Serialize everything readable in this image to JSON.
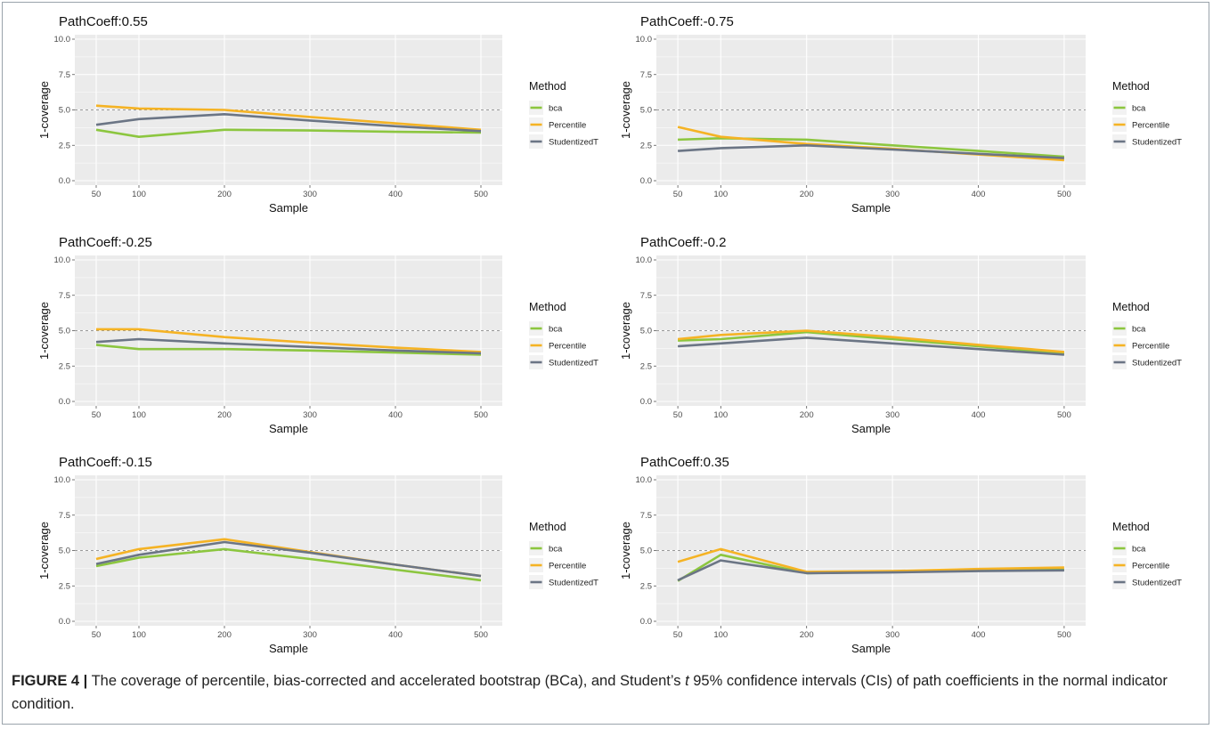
{
  "caption": {
    "label": "FIGURE 4 |",
    "text_before_t": " The coverage of percentile, bias-corrected and accelerated bootstrap (BCa), and Student’s ",
    "t": "t",
    "text_after_t": " 95% confidence intervals  (CIs) of path coefficients in the normal indicator condition."
  },
  "colors": {
    "bca": "#8cc63f",
    "Percentile": "#f5b324",
    "StudentizedT": "#6b7585",
    "panel_bg": "#ebebeb",
    "grid": "#ffffff",
    "reference_line": "#9a9a9a"
  },
  "chart_data": [
    {
      "type": "line",
      "title": "PathCoeff:0.55",
      "xlabel": "Sample",
      "ylabel": "1-coverage",
      "x": [
        50,
        100,
        200,
        300,
        400,
        500
      ],
      "xticks": [
        "50",
        "100",
        "200",
        "300",
        "400",
        "500"
      ],
      "yticks": [
        "0.0",
        "2.5",
        "5.0",
        "7.5",
        "10.0"
      ],
      "xlim": [
        25,
        525
      ],
      "ylim": [
        0,
        10
      ],
      "reference_line": 5,
      "legend_title": "Method",
      "legend_position": "right",
      "series": [
        {
          "name": "bca",
          "values": [
            3.6,
            3.1,
            3.6,
            3.55,
            3.45,
            3.4
          ]
        },
        {
          "name": "Percentile",
          "values": [
            5.3,
            5.1,
            5.0,
            4.5,
            4.05,
            3.6
          ]
        },
        {
          "name": "StudentizedT",
          "values": [
            3.95,
            4.35,
            4.7,
            4.25,
            3.85,
            3.5
          ]
        }
      ]
    },
    {
      "type": "line",
      "title": "PathCoeff:-0.75",
      "xlabel": "Sample",
      "ylabel": "1-coverage",
      "x": [
        50,
        100,
        200,
        300,
        400,
        500
      ],
      "xticks": [
        "50",
        "100",
        "200",
        "300",
        "400",
        "500"
      ],
      "yticks": [
        "0.0",
        "2.5",
        "5.0",
        "7.5",
        "10.0"
      ],
      "xlim": [
        25,
        525
      ],
      "ylim": [
        0,
        10
      ],
      "reference_line": 5,
      "legend_title": "Method",
      "legend_position": "right",
      "series": [
        {
          "name": "bca",
          "values": [
            2.9,
            3.0,
            2.9,
            2.5,
            2.1,
            1.7
          ]
        },
        {
          "name": "Percentile",
          "values": [
            3.8,
            3.1,
            2.6,
            2.25,
            1.85,
            1.45
          ]
        },
        {
          "name": "StudentizedT",
          "values": [
            2.1,
            2.3,
            2.5,
            2.2,
            1.9,
            1.6
          ]
        }
      ]
    },
    {
      "type": "line",
      "title": "PathCoeff:-0.25",
      "xlabel": "Sample",
      "ylabel": "1-coverage",
      "x": [
        50,
        100,
        200,
        300,
        400,
        500
      ],
      "xticks": [
        "50",
        "100",
        "200",
        "300",
        "400",
        "500"
      ],
      "yticks": [
        "0.0",
        "2.5",
        "5.0",
        "7.5",
        "10.0"
      ],
      "xlim": [
        25,
        525
      ],
      "ylim": [
        0,
        10
      ],
      "reference_line": 5,
      "legend_title": "Method",
      "legend_position": "right",
      "series": [
        {
          "name": "bca",
          "values": [
            4.0,
            3.7,
            3.7,
            3.6,
            3.45,
            3.3
          ]
        },
        {
          "name": "Percentile",
          "values": [
            5.1,
            5.1,
            4.55,
            4.15,
            3.8,
            3.5
          ]
        },
        {
          "name": "StudentizedT",
          "values": [
            4.2,
            4.4,
            4.1,
            3.85,
            3.6,
            3.4
          ]
        }
      ]
    },
    {
      "type": "line",
      "title": "PathCoeff:-0.2",
      "xlabel": "Sample",
      "ylabel": "1-coverage",
      "x": [
        50,
        100,
        200,
        300,
        400,
        500
      ],
      "xticks": [
        "50",
        "100",
        "200",
        "300",
        "400",
        "500"
      ],
      "yticks": [
        "0.0",
        "2.5",
        "5.0",
        "7.5",
        "10.0"
      ],
      "xlim": [
        25,
        525
      ],
      "ylim": [
        0,
        10
      ],
      "reference_line": 5,
      "legend_title": "Method",
      "legend_position": "right",
      "series": [
        {
          "name": "bca",
          "values": [
            4.3,
            4.4,
            4.9,
            4.4,
            3.9,
            3.4
          ]
        },
        {
          "name": "Percentile",
          "values": [
            4.4,
            4.7,
            5.0,
            4.55,
            4.0,
            3.5
          ]
        },
        {
          "name": "StudentizedT",
          "values": [
            3.9,
            4.1,
            4.5,
            4.1,
            3.7,
            3.3
          ]
        }
      ]
    },
    {
      "type": "line",
      "title": "PathCoeff:-0.15",
      "xlabel": "Sample",
      "ylabel": "1-coverage",
      "x": [
        50,
        100,
        200,
        300,
        400,
        500
      ],
      "xticks": [
        "50",
        "100",
        "200",
        "300",
        "400",
        "500"
      ],
      "yticks": [
        "0.0",
        "2.5",
        "5.0",
        "7.5",
        "10.0"
      ],
      "xlim": [
        25,
        525
      ],
      "ylim": [
        0,
        10
      ],
      "reference_line": 5,
      "legend_title": "Method",
      "legend_position": "right",
      "series": [
        {
          "name": "bca",
          "values": [
            3.9,
            4.5,
            5.1,
            4.4,
            3.65,
            2.9
          ]
        },
        {
          "name": "Percentile",
          "values": [
            4.4,
            5.1,
            5.8,
            4.9,
            4.0,
            3.2
          ]
        },
        {
          "name": "StudentizedT",
          "values": [
            4.05,
            4.7,
            5.6,
            4.85,
            4.0,
            3.2
          ]
        }
      ]
    },
    {
      "type": "line",
      "title": "PathCoeff:0.35",
      "xlabel": "Sample",
      "ylabel": "1-coverage",
      "x": [
        50,
        100,
        200,
        300,
        400,
        500
      ],
      "xticks": [
        "50",
        "100",
        "200",
        "300",
        "400",
        "500"
      ],
      "yticks": [
        "0.0",
        "2.5",
        "5.0",
        "7.5",
        "10.0"
      ],
      "xlim": [
        25,
        525
      ],
      "ylim": [
        0,
        10
      ],
      "reference_line": 5,
      "legend_title": "Method",
      "legend_position": "right",
      "series": [
        {
          "name": "bca",
          "values": [
            2.85,
            4.7,
            3.4,
            3.5,
            3.6,
            3.65
          ]
        },
        {
          "name": "Percentile",
          "values": [
            4.2,
            5.1,
            3.5,
            3.55,
            3.7,
            3.8
          ]
        },
        {
          "name": "StudentizedT",
          "values": [
            2.9,
            4.3,
            3.4,
            3.45,
            3.55,
            3.6
          ]
        }
      ]
    }
  ]
}
